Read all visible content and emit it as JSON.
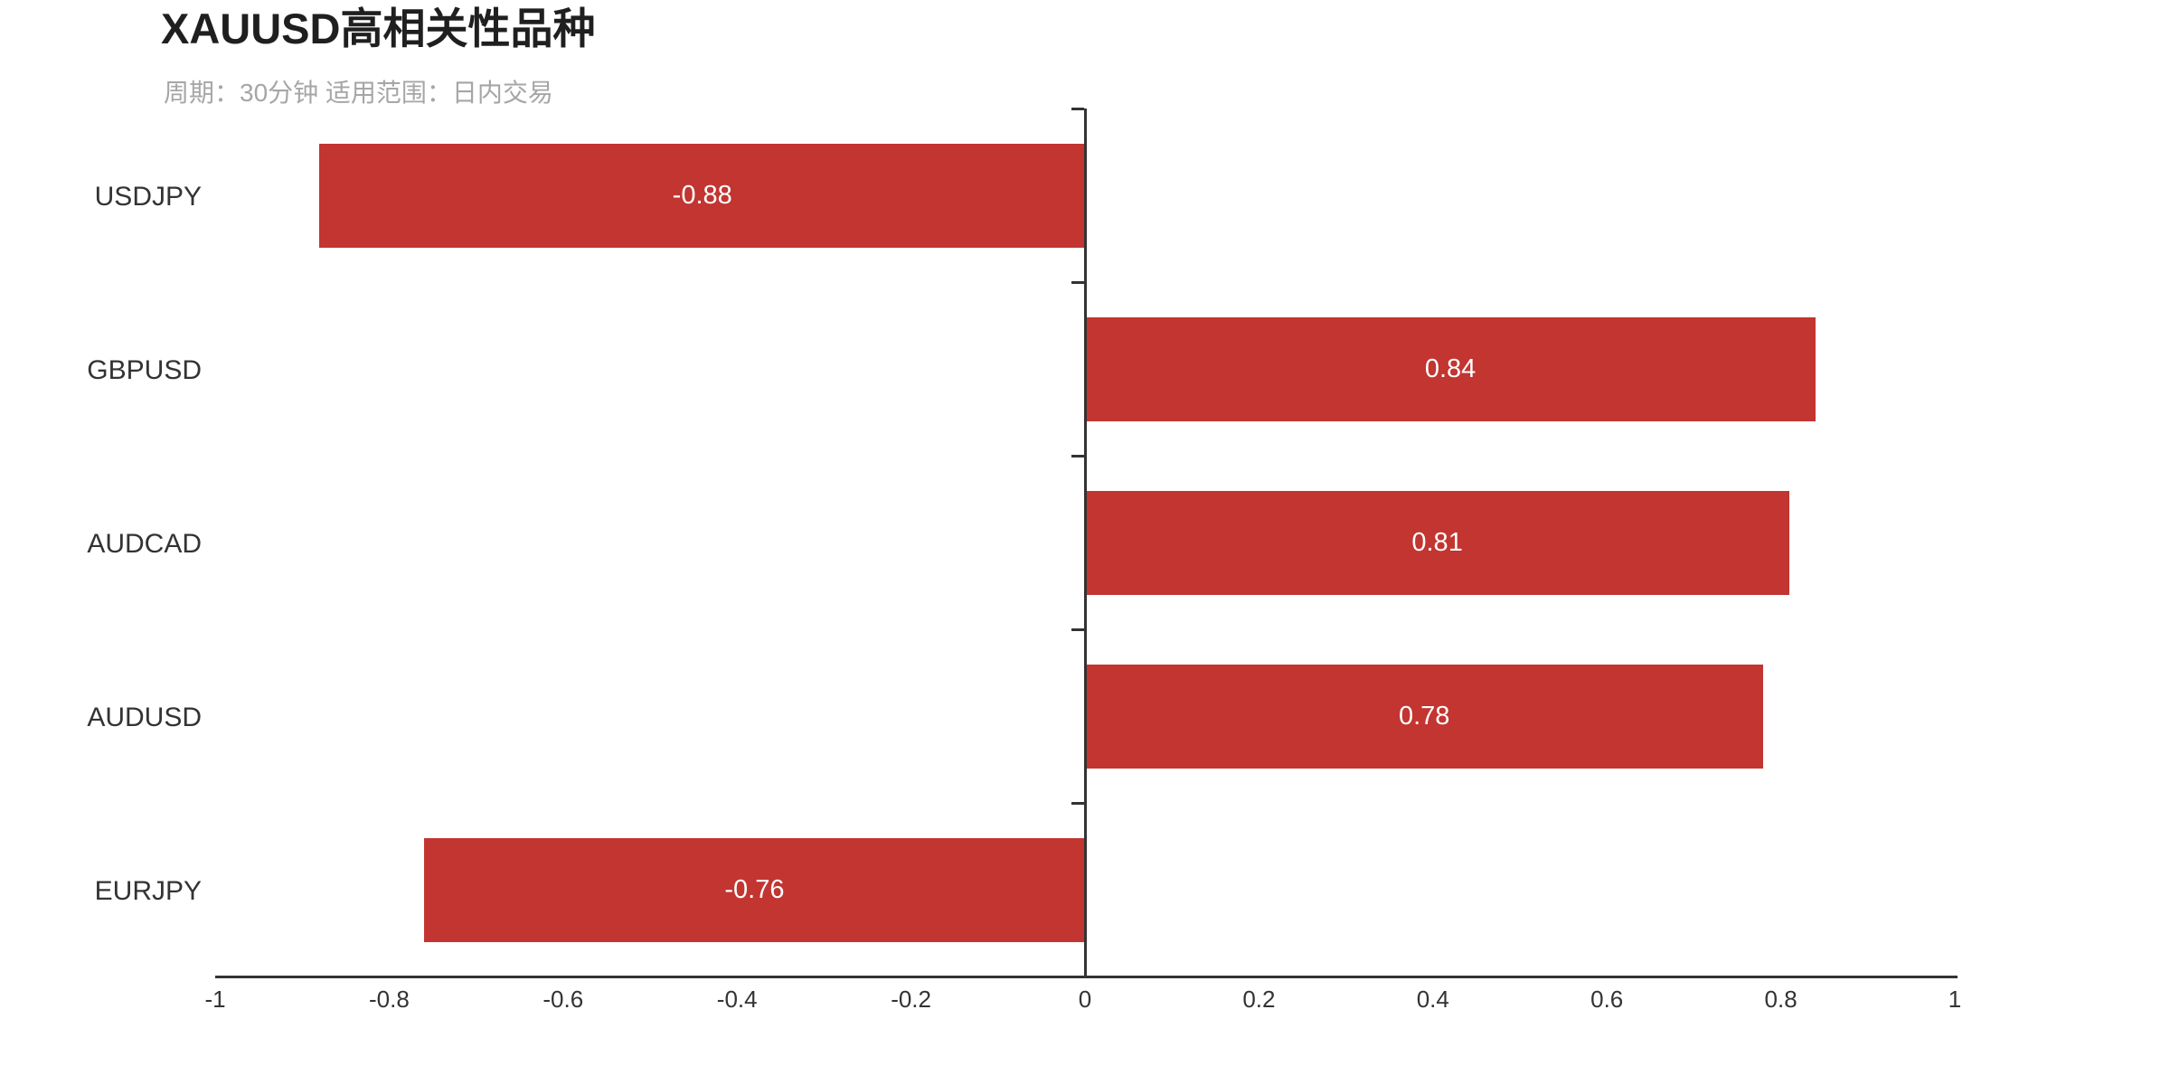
{
  "header": {
    "title": "XAUUSD高相关性品种",
    "subtitle": "周期：30分钟 适用范围：日内交易"
  },
  "chart_data": {
    "type": "bar",
    "orientation": "horizontal",
    "title": "XAUUSD高相关性品种",
    "subtitle": "周期：30分钟 适用范围：日内交易",
    "categories": [
      "USDJPY",
      "GBPUSD",
      "AUDCAD",
      "AUDUSD",
      "EURJPY"
    ],
    "values": [
      -0.88,
      0.84,
      0.81,
      0.78,
      -0.76
    ],
    "value_labels": [
      "-0.88",
      "0.84",
      "0.81",
      "0.78",
      "-0.76"
    ],
    "xlabel": "",
    "ylabel": "",
    "xlim": [
      -1,
      1
    ],
    "x_ticks": [
      -1,
      -0.8,
      -0.6,
      -0.4,
      -0.2,
      0,
      0.2,
      0.4,
      0.6,
      0.8,
      1
    ],
    "x_tick_labels": [
      "-1",
      "-0.8",
      "-0.6",
      "-0.4",
      "-0.2",
      "0",
      "0.2",
      "0.4",
      "0.6",
      "0.8",
      "1"
    ],
    "grid": false,
    "legend": false,
    "value_label_position": "inside-center",
    "colors": {
      "bar": "#c23531",
      "axis": "#333333",
      "tick_label": "#333333",
      "category_label": "#333333",
      "value_label": "#ffffff",
      "title": "#1f1f1f",
      "subtitle": "#a6a6a6",
      "background": "#ffffff"
    }
  }
}
